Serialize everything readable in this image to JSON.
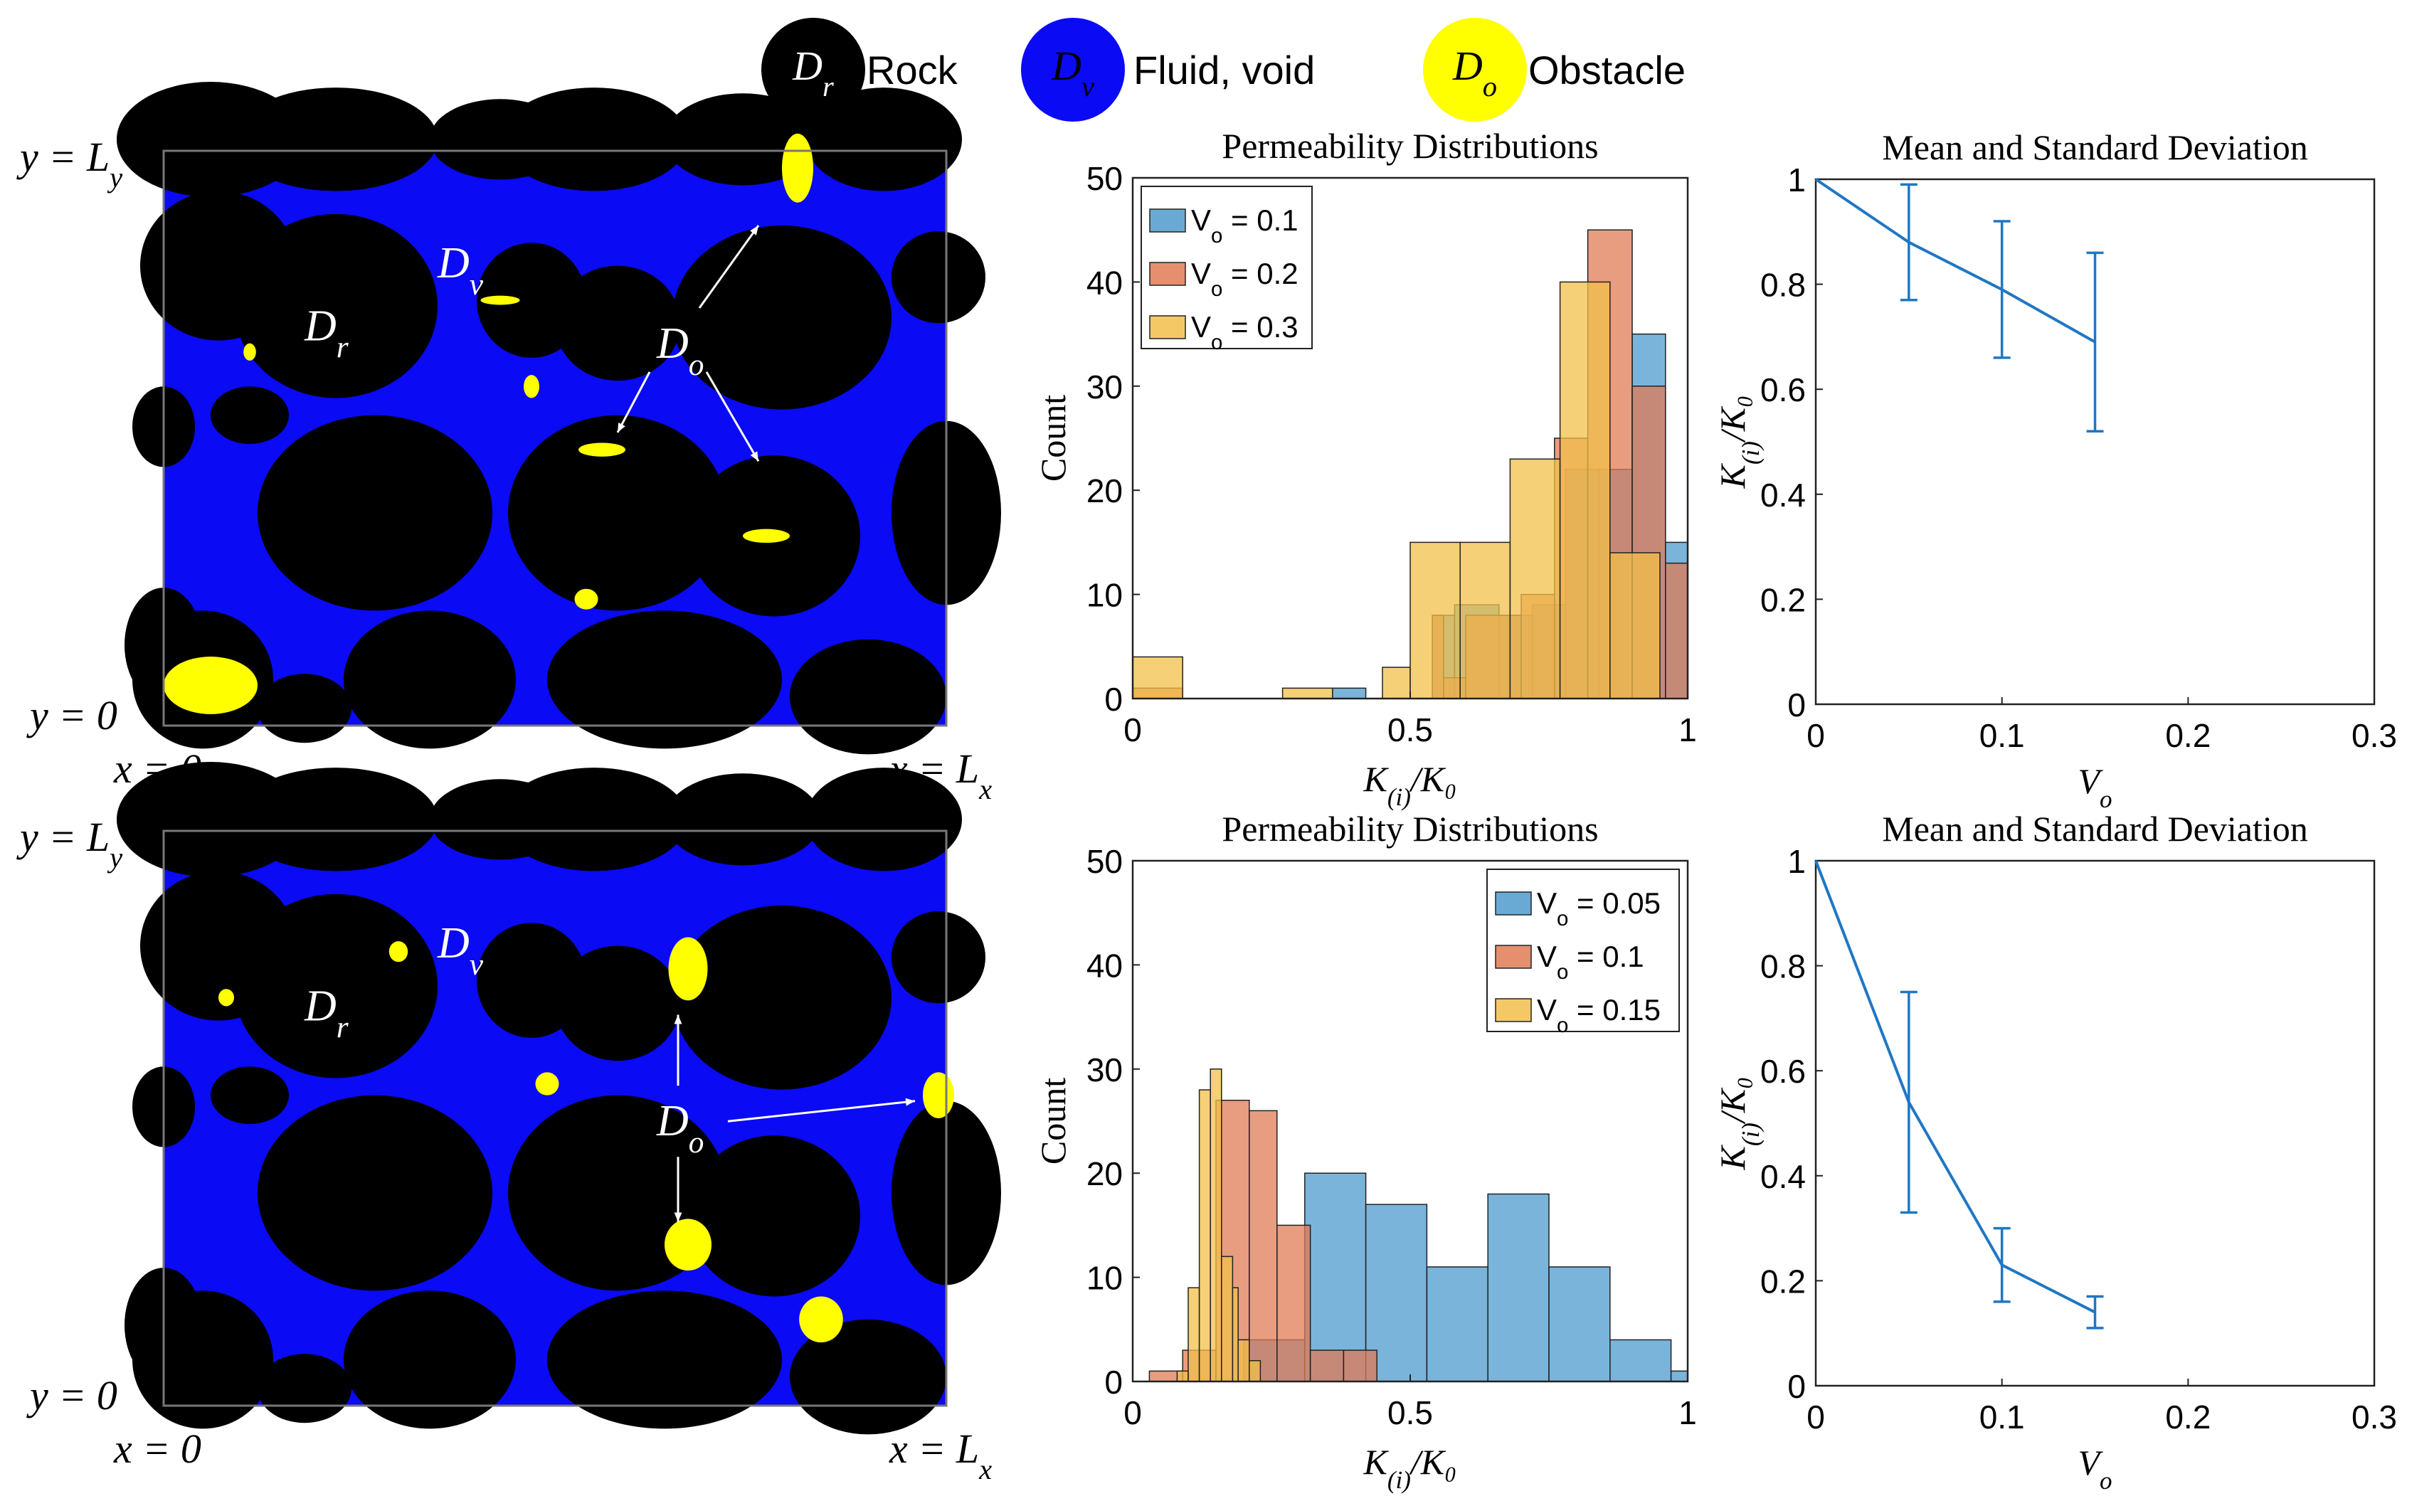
{
  "colors": {
    "rock": "#000000",
    "fluid": "#0a0af5",
    "obstacle": "#ffff00",
    "series1": "#4f9bcd",
    "series2": "#e07b55",
    "series3": "#f2c04a",
    "line": "#1f77c4",
    "annotation": "#ffffff"
  },
  "legend_top": [
    {
      "symbol": "D",
      "sub": "r",
      "label": "Rock",
      "color_key": "rock"
    },
    {
      "symbol": "D",
      "sub": "v",
      "label": "Fluid, void",
      "color_key": "fluid"
    },
    {
      "symbol": "D",
      "sub": "o",
      "label": "Obstacle",
      "color_key": "obstacle"
    }
  ],
  "maps": [
    {
      "y_top": "y = L",
      "y_top_sub": "y",
      "y_bottom": "y = 0",
      "x_left": "x = 0",
      "x_right": "x = L",
      "x_right_sub": "x",
      "label_dv": "D",
      "label_dv_sub": "v",
      "label_dr": "D",
      "label_dr_sub": "r",
      "label_do": "D",
      "label_do_sub": "o"
    },
    {
      "y_top": "y = L",
      "y_top_sub": "y",
      "y_bottom": "y = 0",
      "x_left": "x = 0",
      "x_right": "x = L",
      "x_right_sub": "x",
      "label_dv": "D",
      "label_dv_sub": "v",
      "label_dr": "D",
      "label_dr_sub": "r",
      "label_do": "D",
      "label_do_sub": "o"
    }
  ],
  "chart_data": [
    {
      "type": "bar",
      "title": "Permeability Distributions",
      "xlabel": "K_(i)/K_0",
      "ylabel": "Count",
      "xlim": [
        0,
        1
      ],
      "ylim": [
        0,
        50
      ],
      "xticks": [
        "0",
        "0.5",
        "1"
      ],
      "yticks": [
        "0",
        "10",
        "20",
        "30",
        "40",
        "50"
      ],
      "legend_position": "top-left",
      "series": [
        {
          "name": "V_o = 0.1",
          "legend_main": "V",
          "legend_sub": "o",
          "legend_val": " = 0.1",
          "color_key": "series1",
          "bins": [
            [
              0.36,
              0.42,
              1
            ],
            [
              0.54,
              0.58,
              8
            ],
            [
              0.58,
              0.66,
              9
            ],
            [
              0.66,
              0.72,
              8
            ],
            [
              0.72,
              0.78,
              9
            ],
            [
              0.78,
              0.84,
              22
            ],
            [
              0.84,
              0.9,
              22
            ],
            [
              0.9,
              0.96,
              35
            ],
            [
              0.96,
              1.0,
              15
            ]
          ]
        },
        {
          "name": "V_o = 0.2",
          "legend_main": "V",
          "legend_sub": "o",
          "legend_val": " = 0.2",
          "color_key": "series2",
          "bins": [
            [
              0.0,
              0.09,
              1
            ],
            [
              0.54,
              0.56,
              8
            ],
            [
              0.56,
              0.6,
              2
            ],
            [
              0.6,
              0.7,
              8
            ],
            [
              0.7,
              0.76,
              10
            ],
            [
              0.76,
              0.82,
              25
            ],
            [
              0.82,
              0.9,
              45
            ],
            [
              0.9,
              0.96,
              30
            ],
            [
              0.96,
              1.0,
              13
            ]
          ]
        },
        {
          "name": "V_o = 0.3",
          "legend_main": "V",
          "legend_sub": "o",
          "legend_val": " = 0.3",
          "color_key": "series3",
          "bins": [
            [
              0.0,
              0.09,
              4
            ],
            [
              0.27,
              0.36,
              1
            ],
            [
              0.45,
              0.5,
              3
            ],
            [
              0.5,
              0.59,
              15
            ],
            [
              0.59,
              0.68,
              15
            ],
            [
              0.68,
              0.77,
              23
            ],
            [
              0.77,
              0.86,
              40
            ],
            [
              0.86,
              0.95,
              14
            ]
          ]
        }
      ]
    },
    {
      "type": "line",
      "title": "Mean and Standard Deviation",
      "xlabel": "V_o",
      "ylabel": "K_(i)/K_0",
      "xlim": [
        0,
        0.3
      ],
      "ylim": [
        0,
        1
      ],
      "xticks": [
        "0",
        "0.1",
        "0.2",
        "0.3"
      ],
      "yticks": [
        "0",
        "0.2",
        "0.4",
        "0.6",
        "0.8",
        "1"
      ],
      "x": [
        0,
        0.05,
        0.1,
        0.15
      ],
      "mean": [
        1,
        0.88,
        0.79,
        0.69
      ],
      "err_low": [
        1,
        0.77,
        0.66,
        0.52
      ],
      "err_high": [
        1,
        0.99,
        0.92,
        0.86
      ]
    },
    {
      "type": "bar",
      "title": "Permeability Distributions",
      "xlabel": "K_(i)/K_0",
      "ylabel": "Count",
      "xlim": [
        0,
        1
      ],
      "ylim": [
        0,
        50
      ],
      "xticks": [
        "0",
        "0.5",
        "1"
      ],
      "yticks": [
        "0",
        "10",
        "20",
        "30",
        "40",
        "50"
      ],
      "legend_position": "top-right",
      "series": [
        {
          "name": "V_o = 0.05",
          "legend_main": "V",
          "legend_sub": "o",
          "legend_val": " = 0.05",
          "color_key": "series1",
          "bins": [
            [
              0.2,
              0.31,
              4
            ],
            [
              0.31,
              0.42,
              20
            ],
            [
              0.42,
              0.53,
              17
            ],
            [
              0.53,
              0.64,
              11
            ],
            [
              0.64,
              0.75,
              18
            ],
            [
              0.75,
              0.86,
              11
            ],
            [
              0.86,
              0.97,
              4
            ],
            [
              0.97,
              1.0,
              1
            ]
          ]
        },
        {
          "name": "V_o = 0.1",
          "legend_main": "V",
          "legend_sub": "o",
          "legend_val": " = 0.1",
          "color_key": "series2",
          "bins": [
            [
              0.03,
              0.09,
              1
            ],
            [
              0.09,
              0.15,
              3
            ],
            [
              0.15,
              0.21,
              27
            ],
            [
              0.21,
              0.26,
              26
            ],
            [
              0.26,
              0.32,
              15
            ],
            [
              0.32,
              0.38,
              3
            ],
            [
              0.38,
              0.44,
              3
            ]
          ]
        },
        {
          "name": "V_o = 0.15",
          "legend_main": "V",
          "legend_sub": "o",
          "legend_val": " = 0.15",
          "color_key": "series3",
          "bins": [
            [
              0.08,
              0.1,
              1
            ],
            [
              0.1,
              0.12,
              9
            ],
            [
              0.12,
              0.14,
              28
            ],
            [
              0.14,
              0.16,
              30
            ],
            [
              0.16,
              0.18,
              12
            ],
            [
              0.18,
              0.19,
              9
            ],
            [
              0.19,
              0.21,
              4
            ],
            [
              0.21,
              0.23,
              2
            ]
          ]
        }
      ]
    },
    {
      "type": "line",
      "title": "Mean and Standard Deviation",
      "xlabel": "V_o",
      "ylabel": "K_(i)/K_0",
      "xlim": [
        0,
        0.3
      ],
      "ylim": [
        0,
        1
      ],
      "xticks": [
        "0",
        "0.1",
        "0.2",
        "0.3"
      ],
      "yticks": [
        "0",
        "0.2",
        "0.4",
        "0.6",
        "0.8",
        "1"
      ],
      "x": [
        0,
        0.05,
        0.1,
        0.15
      ],
      "mean": [
        1,
        0.54,
        0.23,
        0.14
      ],
      "err_low": [
        1,
        0.33,
        0.16,
        0.11
      ],
      "err_high": [
        1,
        0.75,
        0.3,
        0.17
      ]
    }
  ]
}
